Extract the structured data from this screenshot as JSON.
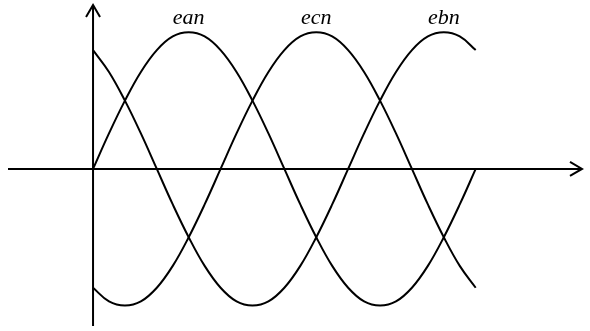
{
  "chart_data": {
    "type": "line",
    "x": [
      0,
      15,
      30,
      45,
      60,
      75,
      90,
      105,
      120,
      135,
      150,
      165,
      180,
      195,
      210,
      225,
      240,
      255,
      270,
      285,
      300,
      315,
      330,
      345,
      360
    ],
    "series": [
      {
        "name": "ean",
        "color": "#000000",
        "values": [
          0,
          0.26,
          0.5,
          0.71,
          0.87,
          0.97,
          1,
          0.97,
          0.87,
          0.71,
          0.5,
          0.26,
          0,
          -0.26,
          -0.5,
          -0.71,
          -0.87,
          -0.97,
          -1,
          -0.97,
          -0.87,
          -0.71,
          -0.5,
          -0.26,
          0
        ]
      },
      {
        "name": "ecn",
        "color": "#000000",
        "values": [
          -0.87,
          -0.97,
          -1,
          -0.97,
          -0.87,
          -0.71,
          -0.5,
          -0.26,
          0,
          0.26,
          0.5,
          0.71,
          0.87,
          0.97,
          1,
          0.97,
          0.87,
          0.71,
          0.5,
          0.26,
          0,
          -0.26,
          -0.5,
          -0.71,
          -0.87
        ]
      },
      {
        "name": "ebn",
        "color": "#000000",
        "values": [
          0.87,
          0.71,
          0.5,
          0.26,
          0,
          -0.26,
          -0.5,
          -0.71,
          -0.87,
          -0.97,
          -1,
          -0.97,
          -0.87,
          -0.71,
          -0.5,
          -0.26,
          0,
          0.26,
          0.5,
          0.71,
          0.87,
          0.97,
          1,
          0.97,
          0.87
        ]
      }
    ],
    "xlim": [
      -80,
      460
    ],
    "ylim": [
      -1.15,
      1.2
    ],
    "xticks": [],
    "yticks": [],
    "tick_labels": false,
    "grid": false
  }
}
